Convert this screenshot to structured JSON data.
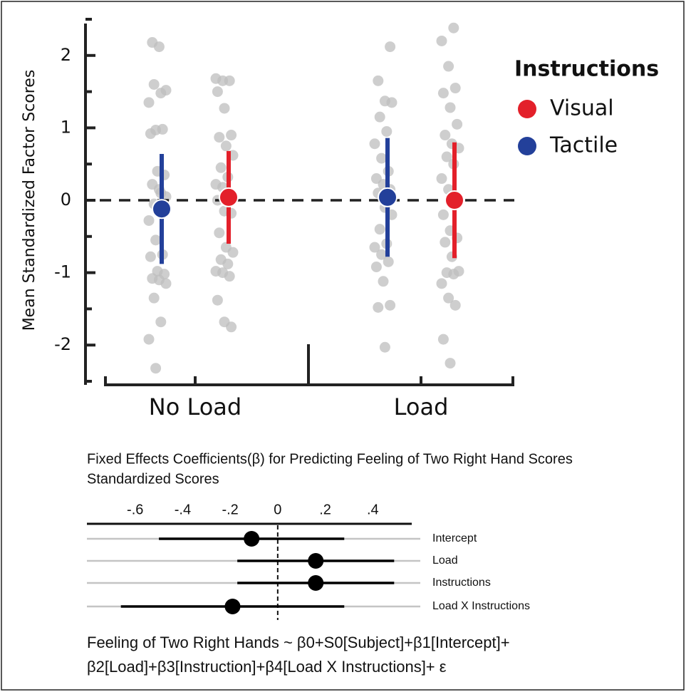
{
  "chart_data": [
    {
      "type": "strip",
      "y_label": "Mean Standardized Factor Scores",
      "categories": [
        "No Load",
        "Load"
      ],
      "ylim": [
        -2.5,
        2.5
      ],
      "yticks": [
        -2,
        -1,
        0,
        1,
        2
      ],
      "yminor_ticks": [
        -2.5,
        -1.5,
        -0.5,
        0.5,
        1.5,
        2.5
      ],
      "reference_line": 0,
      "legend_title": "Instructions",
      "legend": "upper right",
      "point_color": "#bdbdbd",
      "series": [
        {
          "name": "Visual",
          "color": "#e3202a",
          "values": [
            0.04,
            0.0
          ],
          "errors": [
            0.64,
            0.8
          ],
          "points": [
            [
              1.68,
              1.65,
              1.65,
              1.5,
              1.27,
              0.9,
              0.87,
              0.75,
              0.62,
              0.45,
              0.32,
              0.22,
              0.18,
              0.1,
              0.0,
              -0.15,
              -0.18,
              -0.45,
              -0.65,
              -0.72,
              -0.82,
              -0.88,
              -0.98,
              -1.0,
              -1.05,
              -1.38,
              -1.68,
              -1.75
            ],
            [
              2.38,
              2.2,
              1.85,
              1.55,
              1.48,
              1.28,
              1.05,
              0.9,
              0.78,
              0.72,
              0.6,
              0.5,
              0.3,
              0.15,
              0.05,
              -0.2,
              -0.42,
              -0.52,
              -0.58,
              -0.78,
              -0.98,
              -1.0,
              -1.02,
              -1.15,
              -1.35,
              -1.45,
              -1.92,
              -2.25
            ]
          ]
        },
        {
          "name": "Tactile",
          "color": "#23409a",
          "values": [
            -0.12,
            0.04
          ],
          "errors": [
            0.76,
            0.82
          ],
          "points": [
            [
              2.18,
              2.12,
              1.52,
              1.6,
              1.48,
              1.35,
              0.97,
              0.98,
              0.92,
              0.4,
              0.35,
              0.22,
              0.15,
              0.05,
              -0.05,
              0.1,
              -0.28,
              -0.55,
              -0.75,
              -0.78,
              -0.98,
              -1.02,
              -1.08,
              -1.1,
              -1.15,
              -1.35,
              -1.68,
              -1.92,
              -2.32
            ],
            [
              2.12,
              1.65,
              1.37,
              1.35,
              1.15,
              0.95,
              0.78,
              0.58,
              0.4,
              0.3,
              0.22,
              0.15,
              0.1,
              -0.1,
              -0.2,
              -0.4,
              -0.6,
              -0.65,
              -0.75,
              -0.85,
              -0.92,
              -1.12,
              -1.45,
              -1.48,
              -2.03
            ]
          ]
        }
      ]
    },
    {
      "type": "coefficient",
      "title": [
        "Fixed Effects Coefficients(β) for Predicting Feeling of Two Right Hand Scores",
        "Standardized Scores"
      ],
      "categories": [
        "Intercept",
        "Load",
        "Instructions",
        "Load X Instructions"
      ],
      "values": [
        -0.11,
        0.16,
        0.16,
        -0.19
      ],
      "ci_low": [
        -0.5,
        -0.17,
        -0.17,
        -0.66
      ],
      "ci_high": [
        0.28,
        0.49,
        0.49,
        0.28
      ],
      "xlim": [
        -0.8,
        0.6
      ],
      "xticks": [
        {
          "value": -0.6,
          "label": "-.6"
        },
        {
          "value": -0.4,
          "label": "-.4"
        },
        {
          "value": -0.2,
          "label": "-.2"
        },
        0,
        {
          "value": 0.2,
          "label": ".2"
        },
        {
          "value": 0.4,
          "label": ".4"
        }
      ],
      "reference_line": 0,
      "color": "#000000",
      "caption": [
        "Feeling of Two Right Hands ~ β0+S0[Subject]+β1[Intercept]+",
        "β2[Load]+β3[Instruction]+β4[Load X Instructions]+ ε"
      ]
    }
  ]
}
